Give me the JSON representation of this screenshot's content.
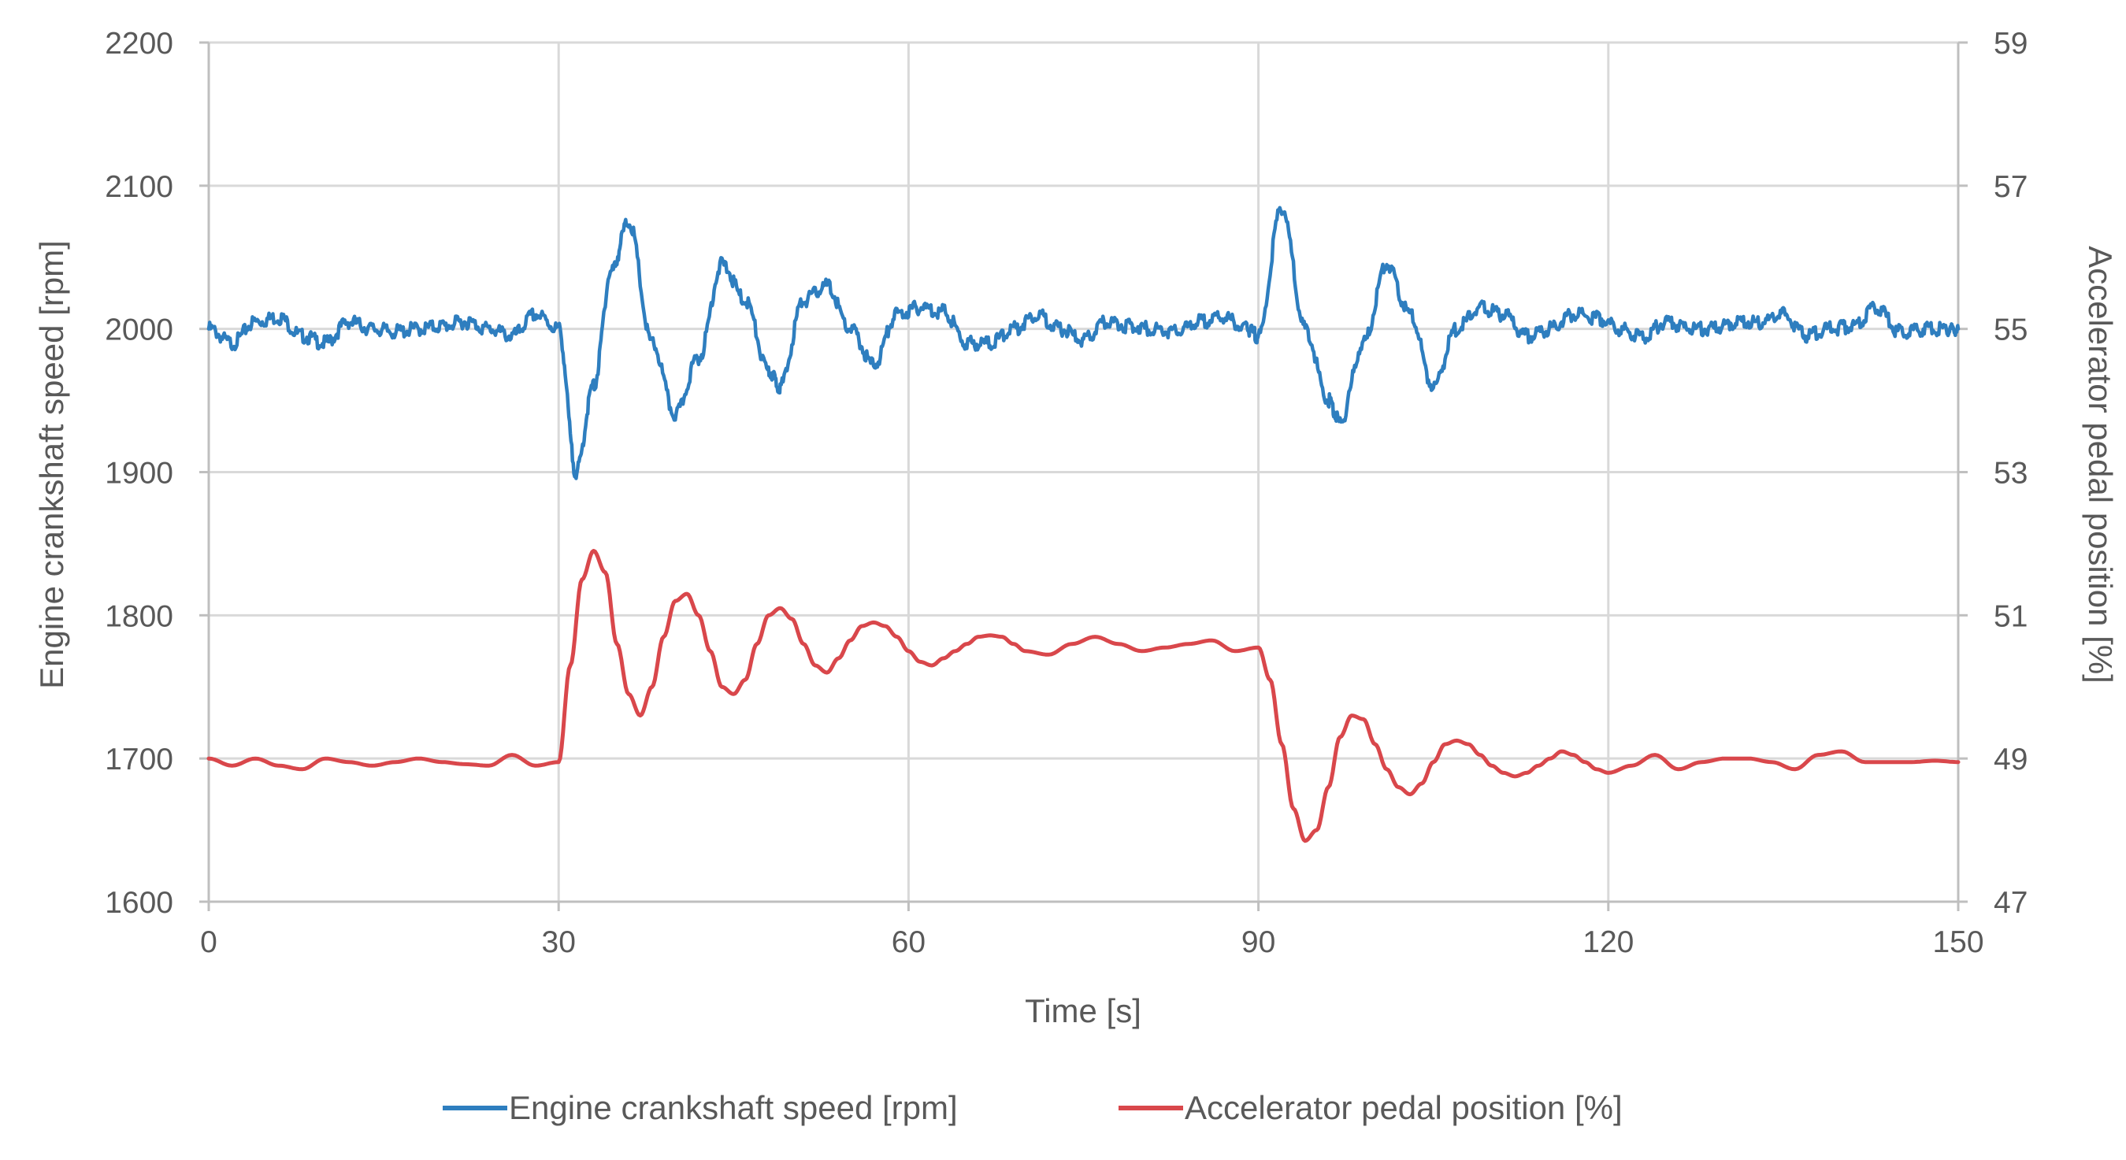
{
  "chart_data": {
    "type": "line",
    "title": "",
    "xlabel": "Time [s]",
    "ylabel": "Engine crankshaft speed [rpm]",
    "y2label": "Accelerator pedal position [%]",
    "xlim": [
      0,
      150
    ],
    "ylim": [
      1600,
      2200
    ],
    "y2lim": [
      47,
      59
    ],
    "xticks": [
      0,
      30,
      60,
      90,
      120,
      150
    ],
    "yticks": [
      1600,
      1700,
      1800,
      1900,
      2000,
      2100,
      2200
    ],
    "y2ticks": [
      47,
      49,
      51,
      53,
      55,
      57,
      59
    ],
    "grid": true,
    "legend": "bottom-center",
    "series": [
      {
        "name": "Engine crankshaft  speed [rpm]",
        "axis": "left",
        "color": "#2e7ebf",
        "x": [
          0,
          2,
          4,
          6,
          8,
          10,
          12,
          14,
          16,
          18,
          20,
          22,
          24,
          26,
          28,
          30,
          31.5,
          33,
          34.5,
          36,
          38,
          40,
          42,
          44,
          46,
          48,
          49,
          51,
          53,
          55,
          57,
          59,
          61,
          63,
          65,
          67,
          69,
          71,
          73,
          75,
          77,
          79,
          81,
          83,
          85,
          87,
          89,
          90,
          92,
          94,
          96,
          97,
          99,
          101,
          103,
          105,
          107,
          109,
          111,
          113,
          115,
          117,
          119,
          121,
          123,
          125,
          127,
          129,
          131,
          133,
          135,
          137,
          139,
          141,
          143,
          145,
          147,
          149,
          150
        ],
        "y": [
          2000,
          1990,
          2005,
          2008,
          1995,
          1990,
          2005,
          2000,
          1998,
          2000,
          2002,
          2005,
          2000,
          1995,
          2010,
          2000,
          1900,
          1960,
          2040,
          2075,
          1990,
          1940,
          1980,
          2045,
          2020,
          1970,
          1960,
          2020,
          2030,
          2000,
          1975,
          2010,
          2015,
          2012,
          1990,
          1990,
          2000,
          2010,
          2000,
          1992,
          2005,
          2002,
          2000,
          1998,
          2005,
          2008,
          2000,
          1995,
          2085,
          2000,
          1950,
          1935,
          1990,
          2045,
          2010,
          1960,
          2000,
          2015,
          2010,
          1995,
          2000,
          2010,
          2008,
          2000,
          1995,
          2005,
          2000,
          2000,
          2005,
          2005,
          2010,
          1995,
          2000,
          2002,
          2015,
          1998,
          2000,
          2000,
          2000
        ]
      },
      {
        "name": "Accelerator pedal position [%]",
        "axis": "right",
        "color": "#d9474b",
        "x": [
          0,
          2,
          4,
          6,
          8,
          10,
          12,
          14,
          16,
          18,
          20,
          22,
          24,
          26,
          28,
          30,
          31,
          32,
          33,
          34,
          35,
          36,
          37,
          38,
          39,
          40,
          41,
          42,
          43,
          44,
          45,
          46,
          47,
          48,
          49,
          50,
          51,
          52,
          53,
          54,
          55,
          56,
          57,
          58,
          59,
          60,
          61,
          62,
          63,
          64,
          65,
          66,
          67,
          68,
          69,
          70,
          72,
          74,
          76,
          78,
          80,
          82,
          84,
          86,
          88,
          90,
          91,
          92,
          93,
          94,
          95,
          96,
          97,
          98,
          99,
          100,
          101,
          102,
          103,
          104,
          105,
          106,
          107,
          108,
          109,
          110,
          111,
          112,
          113,
          114,
          115,
          116,
          117,
          118,
          119,
          120,
          122,
          124,
          126,
          128,
          130,
          132,
          134,
          136,
          138,
          140,
          142,
          144,
          146,
          148,
          150
        ],
        "y": [
          49.0,
          48.9,
          49.0,
          48.9,
          48.85,
          49.0,
          48.95,
          48.9,
          48.95,
          49.0,
          48.95,
          48.92,
          48.9,
          49.05,
          48.9,
          48.95,
          50.3,
          51.5,
          51.9,
          51.6,
          50.6,
          49.9,
          49.6,
          50.0,
          50.7,
          51.2,
          51.3,
          51.0,
          50.5,
          50.0,
          49.9,
          50.1,
          50.6,
          51.0,
          51.1,
          50.95,
          50.6,
          50.3,
          50.2,
          50.4,
          50.65,
          50.85,
          50.9,
          50.85,
          50.7,
          50.5,
          50.35,
          50.3,
          50.4,
          50.5,
          50.6,
          50.7,
          50.72,
          50.7,
          50.6,
          50.5,
          50.45,
          50.6,
          50.7,
          50.6,
          50.5,
          50.55,
          50.6,
          50.65,
          50.5,
          50.55,
          50.1,
          49.2,
          48.3,
          47.85,
          48.0,
          48.6,
          49.3,
          49.6,
          49.55,
          49.2,
          48.85,
          48.6,
          48.5,
          48.65,
          48.95,
          49.2,
          49.25,
          49.2,
          49.05,
          48.9,
          48.8,
          48.75,
          48.8,
          48.9,
          49.0,
          49.1,
          49.05,
          48.95,
          48.85,
          48.8,
          48.9,
          49.05,
          48.85,
          48.95,
          49.0,
          49.0,
          48.95,
          48.85,
          49.05,
          49.1,
          48.95,
          48.95,
          48.95,
          48.97,
          48.95
        ]
      }
    ]
  }
}
